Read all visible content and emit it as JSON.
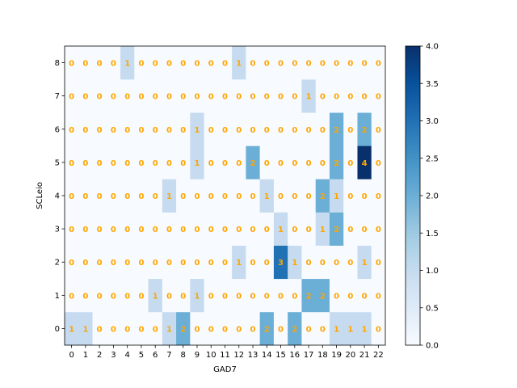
{
  "chart_data": {
    "type": "heatmap",
    "title": "",
    "xlabel": "GAD7",
    "ylabel": "SCLeio",
    "x_categories": [
      "0",
      "1",
      "2",
      "3",
      "4",
      "5",
      "6",
      "7",
      "8",
      "9",
      "10",
      "11",
      "12",
      "13",
      "14",
      "15",
      "16",
      "17",
      "18",
      "19",
      "20",
      "21",
      "22"
    ],
    "y_categories": [
      "0",
      "1",
      "2",
      "3",
      "4",
      "5",
      "6",
      "7",
      "8"
    ],
    "values": [
      [
        1,
        1,
        0,
        0,
        0,
        0,
        0,
        1,
        2,
        0,
        0,
        0,
        0,
        0,
        2,
        0,
        2,
        0,
        0,
        1,
        1,
        1,
        0
      ],
      [
        0,
        0,
        0,
        0,
        0,
        0,
        1,
        0,
        0,
        1,
        0,
        0,
        0,
        0,
        0,
        0,
        0,
        2,
        2,
        0,
        0,
        0,
        0
      ],
      [
        0,
        0,
        0,
        0,
        0,
        0,
        0,
        0,
        0,
        0,
        0,
        0,
        1,
        0,
        0,
        3,
        1,
        0,
        0,
        0,
        0,
        1,
        0
      ],
      [
        0,
        0,
        0,
        0,
        0,
        0,
        0,
        0,
        0,
        0,
        0,
        0,
        0,
        0,
        0,
        1,
        0,
        0,
        1,
        2,
        0,
        0,
        0
      ],
      [
        0,
        0,
        0,
        0,
        0,
        0,
        0,
        1,
        0,
        0,
        0,
        0,
        0,
        0,
        1,
        0,
        0,
        0,
        2,
        1,
        0,
        0,
        0
      ],
      [
        0,
        0,
        0,
        0,
        0,
        0,
        0,
        0,
        0,
        1,
        0,
        0,
        0,
        2,
        0,
        0,
        0,
        0,
        0,
        2,
        0,
        4,
        0
      ],
      [
        0,
        0,
        0,
        0,
        0,
        0,
        0,
        0,
        0,
        1,
        0,
        0,
        0,
        0,
        0,
        0,
        0,
        0,
        0,
        2,
        0,
        2,
        0
      ],
      [
        0,
        0,
        0,
        0,
        0,
        0,
        0,
        0,
        0,
        0,
        0,
        0,
        0,
        0,
        0,
        0,
        0,
        1,
        0,
        0,
        0,
        0,
        0
      ],
      [
        0,
        0,
        0,
        0,
        1,
        0,
        0,
        0,
        0,
        0,
        0,
        0,
        1,
        0,
        0,
        0,
        0,
        0,
        0,
        0,
        0,
        0,
        0
      ]
    ],
    "colormap": "Blues",
    "annotation_color": "#ffa500",
    "color_range": [
      0,
      4
    ],
    "colorbar_ticks": [
      "0.0",
      "0.5",
      "1.0",
      "1.5",
      "2.0",
      "2.5",
      "3.0",
      "3.5",
      "4.0"
    ],
    "grid": false,
    "legend": "colorbar-right"
  }
}
